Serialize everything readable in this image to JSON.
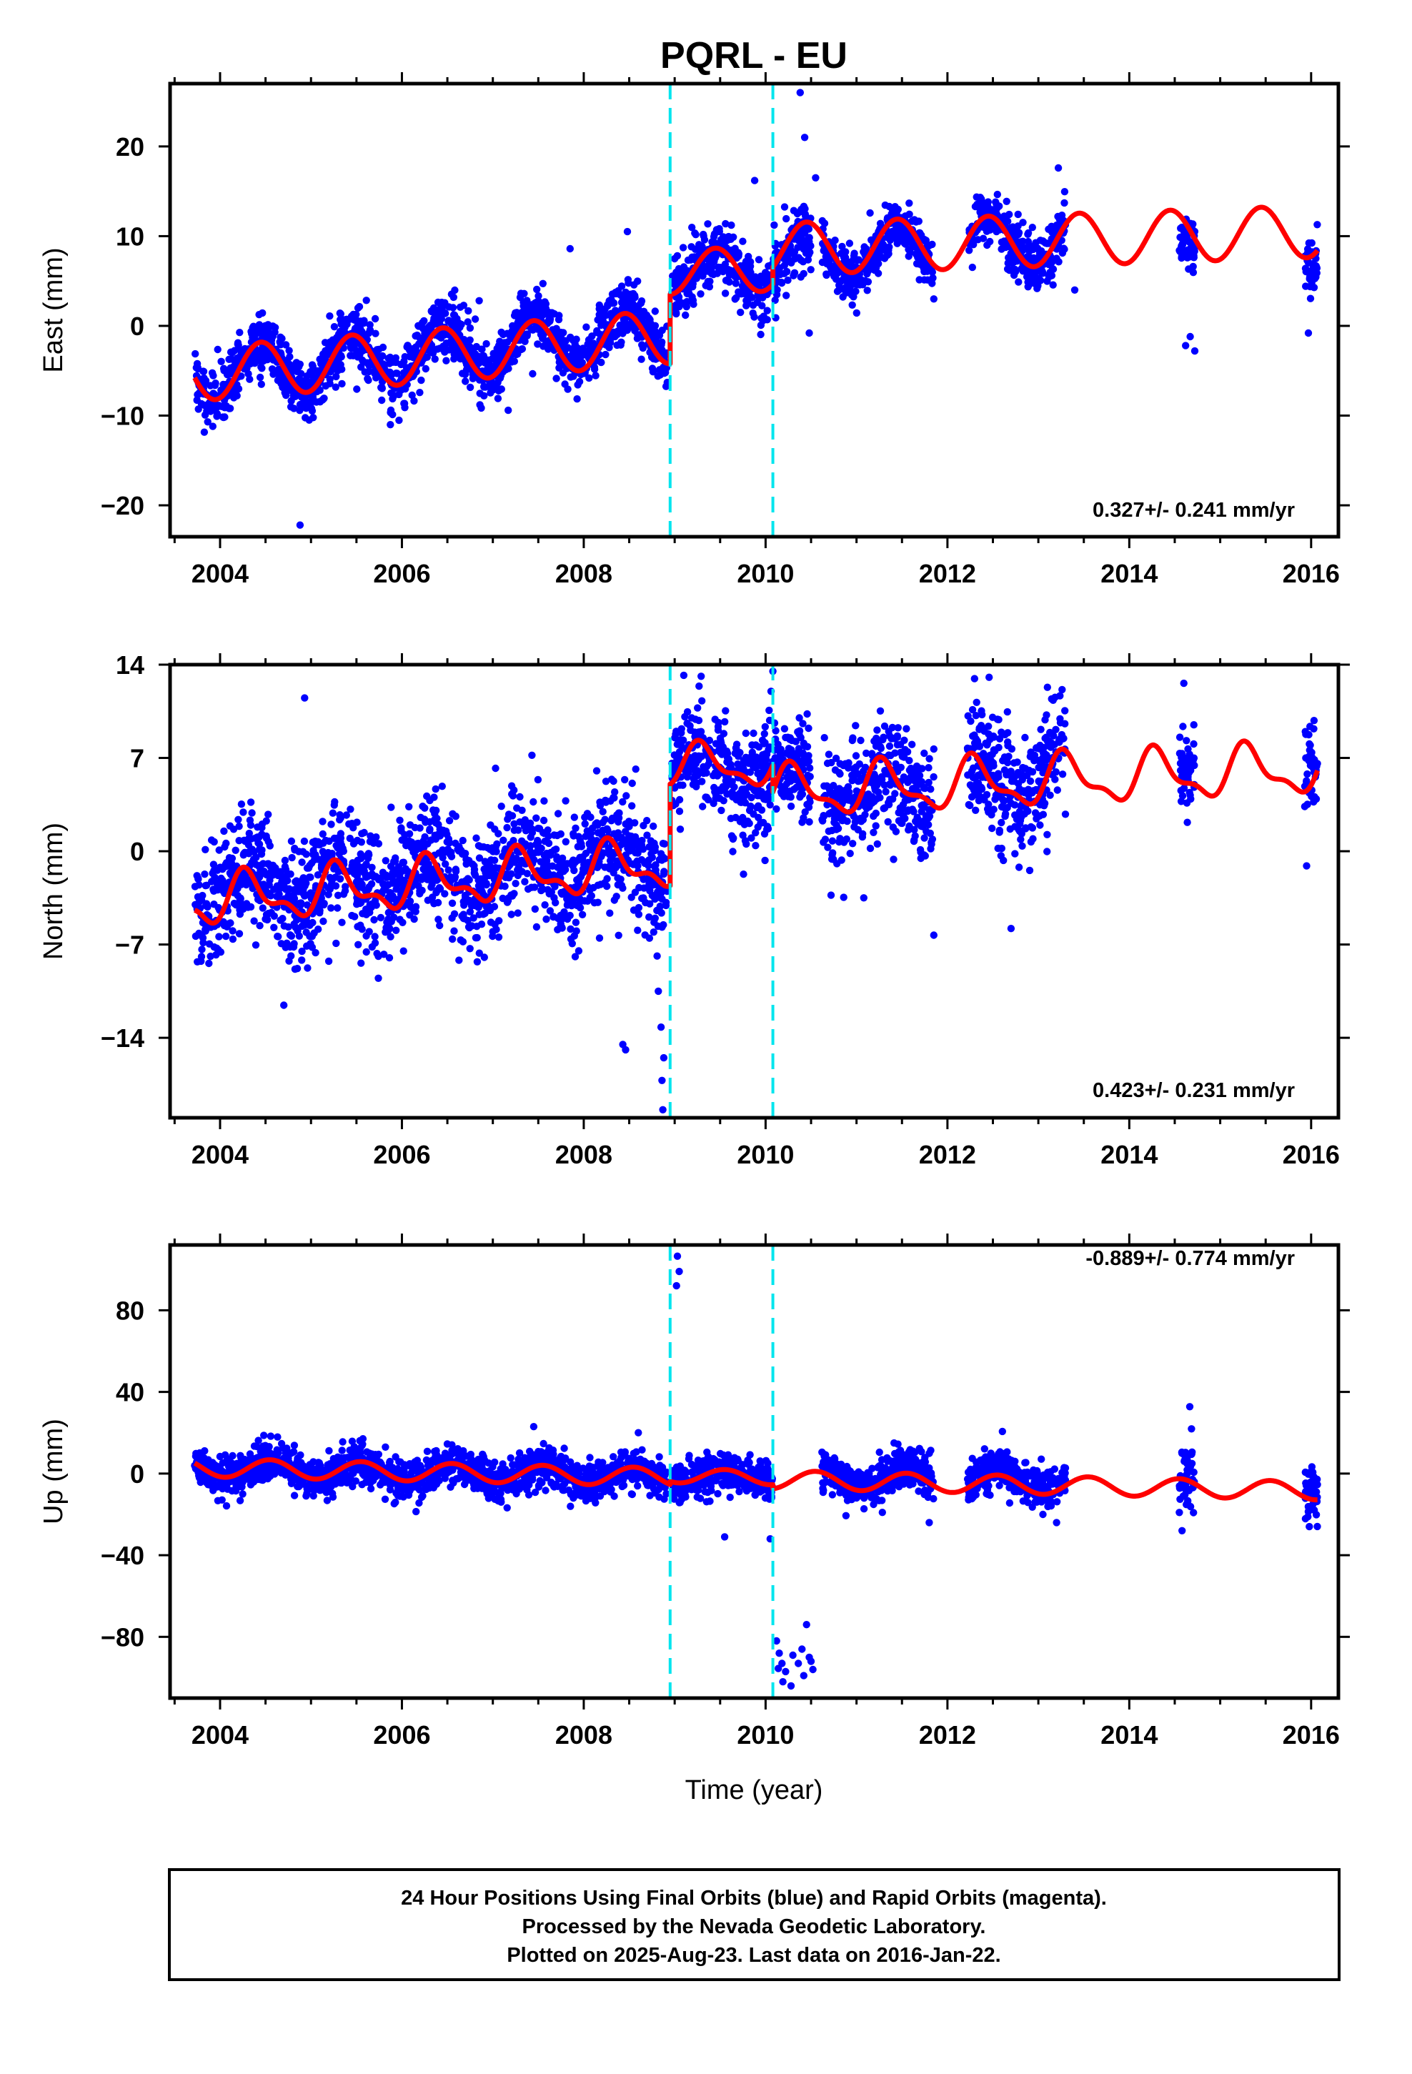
{
  "title": "PQRL - EU",
  "xlabel": "Time (year)",
  "footer": [
    "24 Hour Positions Using Final Orbits (blue) and Rapid Orbits (magenta).",
    "Processed by the Nevada Geodetic Laboratory.",
    "Plotted on 2025-Aug-23. Last data on 2016-Jan-22."
  ],
  "colors": {
    "points": "#0000ff",
    "model": "#ff0000",
    "steps": "#00e5ee",
    "frame": "#000000"
  },
  "chart_data": [
    {
      "type": "scatter",
      "component": "east",
      "ylabel": "East (mm)",
      "rate_text": "0.327+/- 0.241 mm/yr",
      "xlim": [
        2003.45,
        2016.3
      ],
      "ylim": [
        -23.5,
        27.0
      ],
      "x_ticks": [
        2004,
        2006,
        2008,
        2010,
        2012,
        2014,
        2016
      ],
      "y_ticks": [
        -20,
        -10,
        0,
        10,
        20
      ],
      "step_lines_x": [
        2008.95,
        2010.08
      ],
      "series": [
        {
          "kind": "points",
          "segments": [
            {
              "x0": 2003.72,
              "x1": 2008.92,
              "mean": -5.4,
              "amp": 3.0,
              "phase": 2004.45,
              "trend": 0.95,
              "noise": 1.6
            },
            {
              "x0": 2008.97,
              "x1": 2010.08,
              "mean": 5.9,
              "amp": 2.2,
              "phase": 2009.45,
              "trend": 0.5,
              "noise": 1.6
            },
            {
              "x0": 2010.08,
              "x1": 2010.5,
              "mean": 7.8,
              "amp": 2.2,
              "phase": 2010.45,
              "trend": 0.5,
              "noise": 2.0
            },
            {
              "x0": 2010.62,
              "x1": 2011.85,
              "mean": 8.0,
              "amp": 2.8,
              "phase": 2011.45,
              "trend": 0.4,
              "noise": 1.4
            },
            {
              "x0": 2012.22,
              "x1": 2013.3,
              "mean": 9.2,
              "amp": 2.8,
              "phase": 2012.45,
              "trend": 0.4,
              "noise": 1.5
            },
            {
              "x0": 2014.55,
              "x1": 2014.72,
              "mean": 8.5,
              "amp": 1.0,
              "phase": 2014.45,
              "trend": 0.0,
              "noise": 1.6
            },
            {
              "x0": 2015.93,
              "x1": 2016.07,
              "mean": 7.5,
              "amp": 0.5,
              "phase": 2016.45,
              "trend": 0.0,
              "noise": 1.5
            }
          ],
          "outliers": [
            [
              2004.88,
              -22.2
            ],
            [
              2010.38,
              26.0
            ],
            [
              2010.43,
              21.0
            ],
            [
              2010.55,
              16.5
            ],
            [
              2009.88,
              16.2
            ],
            [
              2008.48,
              10.5
            ],
            [
              2013.22,
              17.6
            ],
            [
              2007.85,
              8.6
            ],
            [
              2004.98,
              -10.5
            ],
            [
              2003.92,
              -11.2
            ],
            [
              2014.72,
              -2.8
            ],
            [
              2014.67,
              -1.2
            ],
            [
              2014.62,
              -2.2
            ],
            [
              2010.48,
              -0.8
            ],
            [
              2015.97,
              -0.8
            ],
            [
              2006.85,
              2.8
            ],
            [
              2013.4,
              4.0
            ],
            [
              2011.85,
              3.0
            ]
          ]
        },
        {
          "kind": "model",
          "segments": [
            {
              "x0": 2003.72,
              "x1": 2008.95,
              "y0": -5.4,
              "slope": 0.8,
              "amp": 3.0,
              "phase": 2004.45
            },
            {
              "x0": 2008.95,
              "x1": 2010.08,
              "y0": 6.0,
              "slope": 0.33,
              "amp": 2.5,
              "phase": 2009.45
            },
            {
              "x0": 2010.08,
              "x1": 2016.07,
              "y0": 8.55,
              "slope": 0.33,
              "amp": 2.9,
              "phase": 2010.45
            }
          ]
        }
      ]
    },
    {
      "type": "scatter",
      "component": "north",
      "ylabel": "North (mm)",
      "rate_text": "0.423+/- 0.231 mm/yr",
      "xlim": [
        2003.45,
        2016.3
      ],
      "ylim": [
        -20.0,
        14.0
      ],
      "x_ticks": [
        2004,
        2006,
        2008,
        2010,
        2012,
        2014,
        2016
      ],
      "y_ticks": [
        -14,
        -7,
        0,
        7,
        14
      ],
      "step_lines_x": [
        2008.95,
        2010.08
      ],
      "series": [
        {
          "kind": "points",
          "segments": [
            {
              "x0": 2003.72,
              "x1": 2008.92,
              "mean": -3.2,
              "amp": 1.6,
              "phase": 2004.3,
              "trend": 0.5,
              "noise": 2.2
            },
            {
              "x0": 2008.97,
              "x1": 2010.1,
              "mean": 6.3,
              "amp": 1.5,
              "phase": 2009.3,
              "trend": 0.0,
              "noise": 2.0
            },
            {
              "x0": 2010.1,
              "x1": 2010.5,
              "mean": 5.0,
              "amp": 1.0,
              "phase": 2010.3,
              "trend": 0.0,
              "noise": 1.8
            },
            {
              "x0": 2010.62,
              "x1": 2011.85,
              "mean": 4.3,
              "amp": 1.8,
              "phase": 2011.3,
              "trend": 0.3,
              "noise": 2.1
            },
            {
              "x0": 2012.22,
              "x1": 2013.3,
              "mean": 5.5,
              "amp": 1.8,
              "phase": 2012.3,
              "trend": 0.3,
              "noise": 2.2
            },
            {
              "x0": 2014.55,
              "x1": 2014.72,
              "mean": 6.5,
              "amp": 0.8,
              "phase": 2014.3,
              "trend": 0.0,
              "noise": 1.5
            },
            {
              "x0": 2015.93,
              "x1": 2016.07,
              "mean": 6.5,
              "amp": 0.5,
              "phase": 2016.3,
              "trend": 0.0,
              "noise": 1.8
            }
          ],
          "outliers": [
            [
              2004.93,
              11.5
            ],
            [
              2008.82,
              -10.5
            ],
            [
              2008.85,
              -13.2
            ],
            [
              2008.88,
              -15.5
            ],
            [
              2008.86,
              -17.2
            ],
            [
              2008.87,
              -19.4
            ],
            [
              2008.43,
              -14.5
            ],
            [
              2008.46,
              -14.9
            ],
            [
              2003.75,
              -8.3
            ],
            [
              2004.85,
              -8.8
            ],
            [
              2007.43,
              7.2
            ],
            [
              2010.08,
              13.5
            ],
            [
              2010.06,
              12.0
            ],
            [
              2009.1,
              13.2
            ],
            [
              2011.85,
              -6.3
            ],
            [
              2012.7,
              -5.8
            ],
            [
              2014.6,
              12.6
            ],
            [
              2013.1,
              12.3
            ],
            [
              2015.95,
              -1.1
            ],
            [
              2011.08,
              -3.5
            ],
            [
              2010.72,
              -3.3
            ],
            [
              2005.55,
              -8.4
            ],
            [
              2009.75,
              1.2
            ]
          ]
        },
        {
          "kind": "model",
          "segments": [
            {
              "x0": 2003.72,
              "x1": 2008.95,
              "y0": -3.8,
              "slope": 0.55,
              "amp": 1.6,
              "phase": 2004.3,
              "amp2": 0.8
            },
            {
              "x0": 2008.95,
              "x1": 2010.08,
              "y0": 6.4,
              "slope": 0.0,
              "amp": 1.4,
              "phase": 2009.3,
              "amp2": 0.6
            },
            {
              "x0": 2010.08,
              "x1": 2016.07,
              "y0": 4.4,
              "slope": 0.3,
              "amp": 1.7,
              "phase": 2010.3,
              "amp2": 0.7
            }
          ]
        }
      ]
    },
    {
      "type": "scatter",
      "component": "up",
      "ylabel": "Up (mm)",
      "rate_text": "-0.889+/- 0.774 mm/yr",
      "xlim": [
        2003.45,
        2016.3
      ],
      "ylim": [
        -110.0,
        112.0
      ],
      "x_ticks": [
        2004,
        2006,
        2008,
        2010,
        2012,
        2014,
        2016
      ],
      "y_ticks": [
        -80,
        -40,
        0,
        40,
        80
      ],
      "step_lines_x": [
        2008.95,
        2010.08
      ],
      "series": [
        {
          "kind": "points",
          "segments": [
            {
              "x0": 2003.72,
              "x1": 2008.92,
              "mean": 3.0,
              "amp": 4.5,
              "phase": 2004.55,
              "trend": -0.9,
              "noise": 4.5
            },
            {
              "x0": 2008.97,
              "x1": 2010.08,
              "mean": -1.5,
              "amp": 3.5,
              "phase": 2009.55,
              "trend": 0.0,
              "noise": 4.8
            },
            {
              "x0": 2010.62,
              "x1": 2011.85,
              "mean": -2.0,
              "amp": 4.5,
              "phase": 2011.55,
              "trend": 0.0,
              "noise": 5.0
            },
            {
              "x0": 2012.22,
              "x1": 2013.3,
              "mean": -2.5,
              "amp": 4.5,
              "phase": 2012.55,
              "trend": 0.0,
              "noise": 5.0
            },
            {
              "x0": 2014.55,
              "x1": 2014.72,
              "mean": -2.0,
              "amp": 1.0,
              "phase": 2014.55,
              "trend": 0.0,
              "noise": 9.0
            },
            {
              "x0": 2015.93,
              "x1": 2016.07,
              "mean": -8.0,
              "amp": 1.0,
              "phase": 2016.55,
              "trend": 0.0,
              "noise": 7.0
            }
          ],
          "outliers": [
            [
              2009.03,
              106.5
            ],
            [
              2009.05,
              99.0
            ],
            [
              2009.02,
              92.0
            ],
            [
              2010.12,
              -82.0
            ],
            [
              2010.15,
              -88.0
            ],
            [
              2010.14,
              -95.5
            ],
            [
              2010.19,
              -102.0
            ],
            [
              2010.22,
              -97.0
            ],
            [
              2010.3,
              -89.0
            ],
            [
              2010.36,
              -93.0
            ],
            [
              2010.4,
              -86.0
            ],
            [
              2010.45,
              -74.0
            ],
            [
              2010.48,
              -90.0
            ],
            [
              2010.52,
              -96.0
            ],
            [
              2010.42,
              -99.0
            ],
            [
              2010.28,
              -104.0
            ],
            [
              2010.5,
              -92.0
            ],
            [
              2010.18,
              -93.0
            ],
            [
              2009.55,
              -31.0
            ],
            [
              2011.8,
              -24.0
            ],
            [
              2014.58,
              -28.0
            ],
            [
              2015.98,
              -26.0
            ],
            [
              2013.2,
              -24.0
            ],
            [
              2010.05,
              -32.0
            ],
            [
              2008.6,
              20.0
            ],
            [
              2007.45,
              23.0
            ]
          ]
        },
        {
          "kind": "model",
          "segments": [
            {
              "x0": 2003.72,
              "x1": 2008.95,
              "y0": 3.0,
              "slope": -0.9,
              "amp": 4.5,
              "phase": 2004.55
            },
            {
              "x0": 2008.95,
              "x1": 2010.08,
              "y0": -1.0,
              "slope": -0.9,
              "amp": 3.5,
              "phase": 2009.55
            },
            {
              "x0": 2010.08,
              "x1": 2016.07,
              "y0": -3.0,
              "slope": -0.9,
              "amp": 4.5,
              "phase": 2010.55
            }
          ]
        }
      ]
    }
  ]
}
